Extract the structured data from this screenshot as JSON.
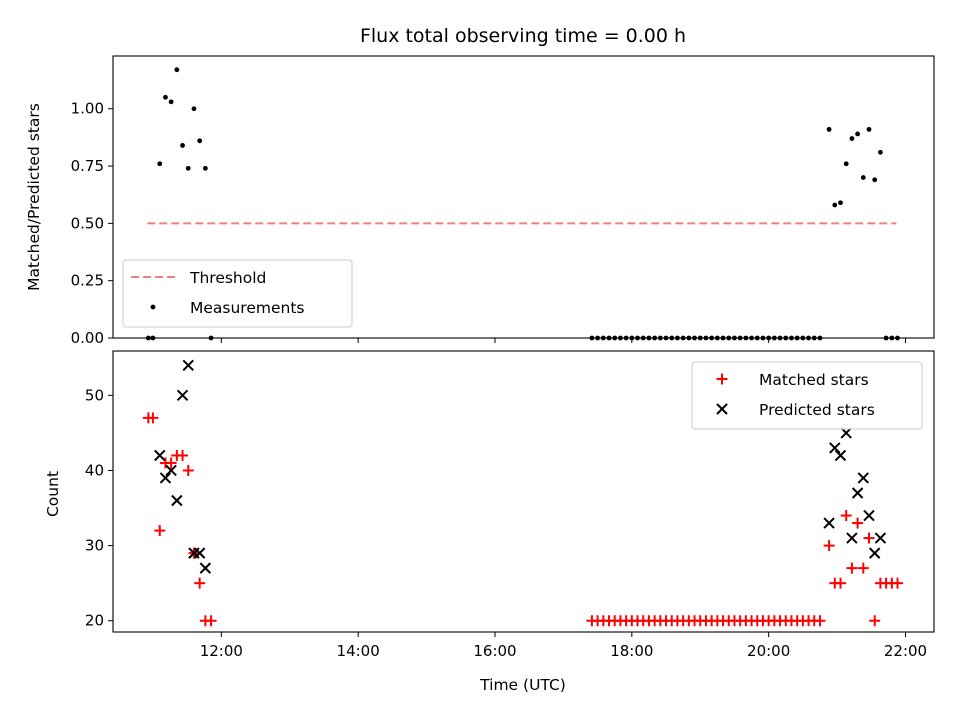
{
  "colors": {
    "threshold": "#f08080",
    "measurement": "#000000",
    "matched": "#ff0000",
    "predicted": "#000000",
    "legend_border": "#cccccc"
  },
  "chart_data": [
    {
      "type": "scatter",
      "title": "Flux total observing time = 0.00 h",
      "xlabel": "",
      "ylabel": "Matched/Predicted stars",
      "xlim": [
        "10:25",
        "22:25"
      ],
      "ylim": [
        0,
        1.23
      ],
      "yticks": [
        0.0,
        0.25,
        0.5,
        0.75,
        1.0
      ],
      "ytick_labels": [
        "0.00",
        "0.25",
        "0.50",
        "0.75",
        "1.00"
      ],
      "legend_position": "lower-left",
      "grid": false,
      "series": [
        {
          "name": "Threshold",
          "kind": "dashed-line",
          "points": [
            [
              "10:55",
              0.5
            ],
            [
              "21:52",
              0.5
            ]
          ]
        },
        {
          "name": "Measurements",
          "kind": "dot",
          "points": [
            [
              "10:56",
              0.0
            ],
            [
              "11:00",
              0.0
            ],
            [
              "11:06",
              0.76
            ],
            [
              "11:11",
              1.05
            ],
            [
              "11:16",
              1.03
            ],
            [
              "11:21",
              1.17
            ],
            [
              "11:26",
              0.84
            ],
            [
              "11:31",
              0.74
            ],
            [
              "11:36",
              1.0
            ],
            [
              "11:41",
              0.86
            ],
            [
              "11:46",
              0.74
            ],
            [
              "11:51",
              0.0
            ],
            [
              "17:25",
              0.0
            ],
            [
              "17:30",
              0.0
            ],
            [
              "17:35",
              0.0
            ],
            [
              "17:40",
              0.0
            ],
            [
              "17:45",
              0.0
            ],
            [
              "17:50",
              0.0
            ],
            [
              "17:55",
              0.0
            ],
            [
              "18:00",
              0.0
            ],
            [
              "18:05",
              0.0
            ],
            [
              "18:10",
              0.0
            ],
            [
              "18:15",
              0.0
            ],
            [
              "18:20",
              0.0
            ],
            [
              "18:25",
              0.0
            ],
            [
              "18:30",
              0.0
            ],
            [
              "18:35",
              0.0
            ],
            [
              "18:40",
              0.0
            ],
            [
              "18:45",
              0.0
            ],
            [
              "18:50",
              0.0
            ],
            [
              "18:55",
              0.0
            ],
            [
              "19:00",
              0.0
            ],
            [
              "19:05",
              0.0
            ],
            [
              "19:10",
              0.0
            ],
            [
              "19:15",
              0.0
            ],
            [
              "19:20",
              0.0
            ],
            [
              "19:25",
              0.0
            ],
            [
              "19:30",
              0.0
            ],
            [
              "19:35",
              0.0
            ],
            [
              "19:40",
              0.0
            ],
            [
              "19:45",
              0.0
            ],
            [
              "19:50",
              0.0
            ],
            [
              "19:55",
              0.0
            ],
            [
              "20:00",
              0.0
            ],
            [
              "20:05",
              0.0
            ],
            [
              "20:10",
              0.0
            ],
            [
              "20:15",
              0.0
            ],
            [
              "20:20",
              0.0
            ],
            [
              "20:25",
              0.0
            ],
            [
              "20:30",
              0.0
            ],
            [
              "20:35",
              0.0
            ],
            [
              "20:40",
              0.0
            ],
            [
              "20:45",
              0.0
            ],
            [
              "20:53",
              0.91
            ],
            [
              "20:58",
              0.58
            ],
            [
              "21:03",
              0.59
            ],
            [
              "21:08",
              0.76
            ],
            [
              "21:13",
              0.87
            ],
            [
              "21:18",
              0.89
            ],
            [
              "21:23",
              0.7
            ],
            [
              "21:28",
              0.91
            ],
            [
              "21:33",
              0.69
            ],
            [
              "21:38",
              0.81
            ],
            [
              "21:43",
              0.0
            ],
            [
              "21:48",
              0.0
            ],
            [
              "21:53",
              0.0
            ]
          ]
        }
      ]
    },
    {
      "type": "scatter",
      "title": "",
      "xlabel": "Time (UTC)",
      "ylabel": "Count",
      "xlim": [
        "10:25",
        "22:25"
      ],
      "ylim": [
        18.5,
        55.9
      ],
      "xticks": [
        "12:00",
        "14:00",
        "16:00",
        "18:00",
        "20:00",
        "22:00"
      ],
      "yticks": [
        20,
        30,
        40,
        50
      ],
      "legend_position": "upper-right",
      "grid": false,
      "series": [
        {
          "name": "Matched stars",
          "kind": "plus",
          "points": [
            [
              "10:56",
              47
            ],
            [
              "11:00",
              47
            ],
            [
              "11:06",
              32
            ],
            [
              "11:11",
              41
            ],
            [
              "11:16",
              41
            ],
            [
              "11:21",
              42
            ],
            [
              "11:26",
              42
            ],
            [
              "11:31",
              40
            ],
            [
              "11:36",
              29
            ],
            [
              "11:41",
              25
            ],
            [
              "11:46",
              20
            ],
            [
              "11:51",
              20
            ],
            [
              "17:25",
              20
            ],
            [
              "17:30",
              20
            ],
            [
              "17:35",
              20
            ],
            [
              "17:40",
              20
            ],
            [
              "17:45",
              20
            ],
            [
              "17:50",
              20
            ],
            [
              "17:55",
              20
            ],
            [
              "18:00",
              20
            ],
            [
              "18:05",
              20
            ],
            [
              "18:10",
              20
            ],
            [
              "18:15",
              20
            ],
            [
              "18:20",
              20
            ],
            [
              "18:25",
              20
            ],
            [
              "18:30",
              20
            ],
            [
              "18:35",
              20
            ],
            [
              "18:40",
              20
            ],
            [
              "18:45",
              20
            ],
            [
              "18:50",
              20
            ],
            [
              "18:55",
              20
            ],
            [
              "19:00",
              20
            ],
            [
              "19:05",
              20
            ],
            [
              "19:10",
              20
            ],
            [
              "19:15",
              20
            ],
            [
              "19:20",
              20
            ],
            [
              "19:25",
              20
            ],
            [
              "19:30",
              20
            ],
            [
              "19:35",
              20
            ],
            [
              "19:40",
              20
            ],
            [
              "19:45",
              20
            ],
            [
              "19:50",
              20
            ],
            [
              "19:55",
              20
            ],
            [
              "20:00",
              20
            ],
            [
              "20:05",
              20
            ],
            [
              "20:10",
              20
            ],
            [
              "20:15",
              20
            ],
            [
              "20:20",
              20
            ],
            [
              "20:25",
              20
            ],
            [
              "20:30",
              20
            ],
            [
              "20:35",
              20
            ],
            [
              "20:40",
              20
            ],
            [
              "20:45",
              20
            ],
            [
              "20:53",
              30
            ],
            [
              "20:58",
              25
            ],
            [
              "21:03",
              25
            ],
            [
              "21:08",
              34
            ],
            [
              "21:13",
              27
            ],
            [
              "21:18",
              33
            ],
            [
              "21:23",
              27
            ],
            [
              "21:28",
              31
            ],
            [
              "21:33",
              20
            ],
            [
              "21:38",
              25
            ],
            [
              "21:43",
              25
            ],
            [
              "21:48",
              25
            ],
            [
              "21:53",
              25
            ]
          ]
        },
        {
          "name": "Predicted stars",
          "kind": "x",
          "points": [
            [
              "11:06",
              42
            ],
            [
              "11:11",
              39
            ],
            [
              "11:16",
              40
            ],
            [
              "11:21",
              36
            ],
            [
              "11:26",
              50
            ],
            [
              "11:31",
              54
            ],
            [
              "11:36",
              29
            ],
            [
              "11:41",
              29
            ],
            [
              "11:46",
              27
            ],
            [
              "20:53",
              33
            ],
            [
              "20:58",
              43
            ],
            [
              "21:03",
              42
            ],
            [
              "21:08",
              45
            ],
            [
              "21:13",
              31
            ],
            [
              "21:18",
              37
            ],
            [
              "21:23",
              39
            ],
            [
              "21:28",
              34
            ],
            [
              "21:33",
              29
            ],
            [
              "21:38",
              31
            ]
          ]
        }
      ]
    }
  ]
}
